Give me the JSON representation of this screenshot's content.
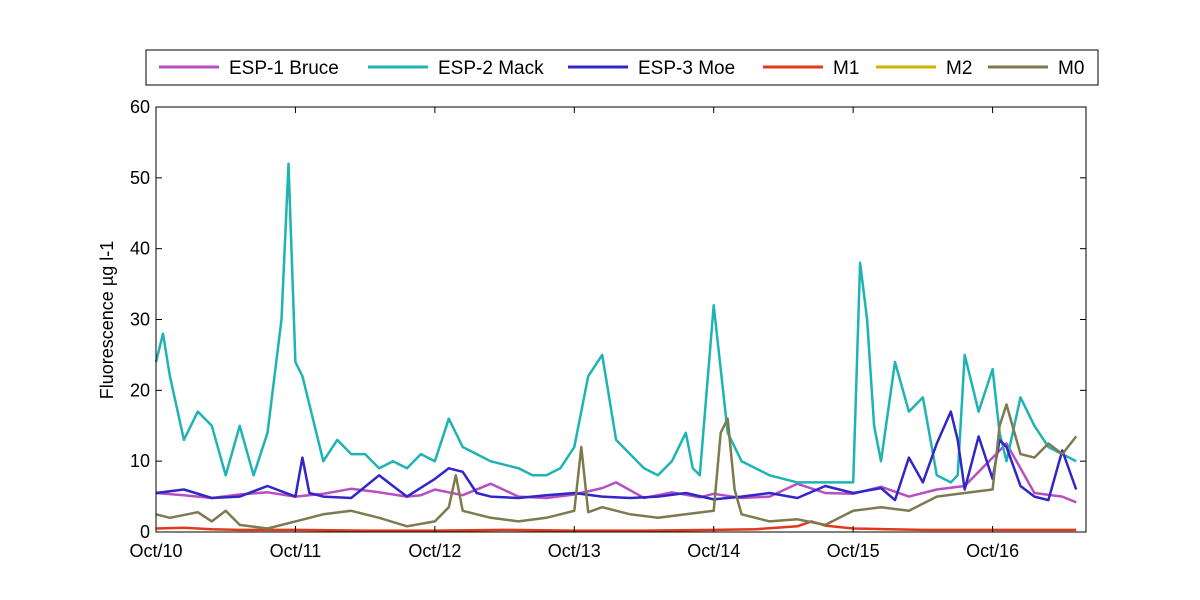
{
  "chart_data": {
    "type": "line",
    "title": "",
    "xlabel": "",
    "ylabel": "Fluorescence µg l-1",
    "x_ticks": [
      "Oct/10",
      "Oct/11",
      "Oct/12",
      "Oct/13",
      "Oct/14",
      "Oct/15",
      "Oct/16"
    ],
    "xlim": [
      0,
      6.67
    ],
    "ylim": [
      0,
      60
    ],
    "y_ticks": [
      0,
      10,
      20,
      30,
      40,
      50,
      60
    ],
    "grid": false,
    "legend_position": "top, horizontal, outside plot",
    "x_units": "days since Oct/10",
    "series": [
      {
        "name": "ESP-1 Bruce",
        "color": "#B84FC0",
        "x": [
          0,
          0.2,
          0.4,
          0.6,
          0.8,
          1.0,
          1.2,
          1.4,
          1.6,
          1.8,
          1.9,
          2.0,
          2.2,
          2.4,
          2.6,
          2.8,
          3.0,
          3.2,
          3.3,
          3.5,
          3.7,
          3.9,
          4.0,
          4.2,
          4.4,
          4.6,
          4.8,
          5.0,
          5.2,
          5.4,
          5.6,
          5.8,
          5.95,
          6.1,
          6.3,
          6.5,
          6.6
        ],
        "y": [
          5.5,
          5.2,
          4.8,
          5.3,
          5.6,
          5.0,
          5.4,
          6.1,
          5.6,
          5.0,
          5.2,
          6.0,
          5.2,
          6.8,
          5.0,
          4.8,
          5.3,
          6.2,
          7.0,
          4.8,
          5.6,
          4.9,
          5.4,
          4.8,
          5.0,
          6.8,
          5.5,
          5.4,
          6.4,
          5.0,
          6.0,
          6.5,
          9.5,
          12.5,
          5.5,
          5.0,
          4.2
        ]
      },
      {
        "name": "ESP-2 Mack",
        "color": "#1FB3B3",
        "x": [
          0,
          0.05,
          0.1,
          0.2,
          0.3,
          0.4,
          0.5,
          0.6,
          0.7,
          0.8,
          0.9,
          0.95,
          1.0,
          1.05,
          1.1,
          1.2,
          1.3,
          1.4,
          1.5,
          1.6,
          1.7,
          1.8,
          1.9,
          2.0,
          2.1,
          2.2,
          2.4,
          2.6,
          2.7,
          2.8,
          2.9,
          3.0,
          3.1,
          3.2,
          3.3,
          3.4,
          3.5,
          3.6,
          3.7,
          3.8,
          3.85,
          3.9,
          4.0,
          4.1,
          4.2,
          4.4,
          4.6,
          4.7,
          4.8,
          4.9,
          5.0,
          5.05,
          5.1,
          5.15,
          5.2,
          5.3,
          5.4,
          5.5,
          5.6,
          5.7,
          5.75,
          5.8,
          5.9,
          6.0,
          6.05,
          6.1,
          6.2,
          6.3,
          6.4,
          6.5,
          6.6
        ],
        "y": [
          24,
          28,
          22,
          13,
          17,
          15,
          8,
          15,
          8,
          14,
          30,
          52,
          24,
          22,
          18,
          10,
          13,
          11,
          11,
          9,
          10,
          9,
          11,
          10,
          16,
          12,
          10,
          9,
          8,
          8,
          9,
          12,
          22,
          25,
          13,
          11,
          9,
          8,
          10,
          14,
          9,
          8,
          32,
          14,
          10,
          8,
          7,
          7,
          7,
          7,
          7,
          38,
          30,
          15,
          10,
          24,
          17,
          19,
          8,
          7,
          8,
          25,
          17,
          23,
          14,
          10,
          19,
          15,
          12,
          11,
          10
        ]
      },
      {
        "name": "ESP-3 Moe",
        "color": "#3126C8",
        "x": [
          0,
          0.2,
          0.4,
          0.6,
          0.8,
          1.0,
          1.05,
          1.1,
          1.2,
          1.4,
          1.6,
          1.7,
          1.8,
          2.0,
          2.1,
          2.2,
          2.3,
          2.4,
          2.6,
          2.8,
          3.0,
          3.2,
          3.4,
          3.6,
          3.8,
          4.0,
          4.2,
          4.4,
          4.6,
          4.8,
          5.0,
          5.2,
          5.3,
          5.4,
          5.5,
          5.6,
          5.7,
          5.75,
          5.8,
          5.9,
          6.0,
          6.05,
          6.1,
          6.2,
          6.3,
          6.4,
          6.5,
          6.6
        ],
        "y": [
          5.5,
          6.0,
          4.8,
          5.0,
          6.5,
          5.0,
          10.5,
          5.5,
          5.0,
          4.8,
          8.0,
          6.5,
          5.0,
          7.5,
          9.0,
          8.5,
          5.5,
          5.0,
          4.8,
          5.2,
          5.5,
          5.0,
          4.8,
          5.0,
          5.5,
          4.6,
          5.0,
          5.5,
          4.8,
          6.5,
          5.5,
          6.2,
          4.5,
          10.5,
          7.0,
          12.5,
          17.0,
          13.0,
          6.0,
          13.5,
          7.5,
          13.0,
          12.0,
          6.5,
          5.0,
          4.5,
          11.5,
          6.0
        ]
      },
      {
        "name": "M1",
        "color": "#E03A1B",
        "x": [
          0,
          0.2,
          0.4,
          0.6,
          1.0,
          1.5,
          2.0,
          2.5,
          3.0,
          3.5,
          4.0,
          4.3,
          4.6,
          4.7,
          4.8,
          5.0,
          5.5,
          6.0,
          6.6
        ],
        "y": [
          0.5,
          0.6,
          0.4,
          0.3,
          0.3,
          0.2,
          0.2,
          0.3,
          0.2,
          0.2,
          0.3,
          0.4,
          0.8,
          1.5,
          0.9,
          0.5,
          0.3,
          0.3,
          0.3
        ]
      },
      {
        "name": "M2",
        "color": "#D1B300",
        "x": [],
        "y": []
      },
      {
        "name": "M0",
        "color": "#7C7A4E",
        "x": [
          0,
          0.1,
          0.3,
          0.4,
          0.5,
          0.6,
          0.8,
          1.0,
          1.2,
          1.4,
          1.6,
          1.8,
          2.0,
          2.1,
          2.15,
          2.2,
          2.4,
          2.6,
          2.8,
          3.0,
          3.05,
          3.1,
          3.2,
          3.4,
          3.6,
          3.8,
          4.0,
          4.05,
          4.1,
          4.15,
          4.2,
          4.4,
          4.6,
          4.8,
          5.0,
          5.2,
          5.4,
          5.6,
          5.8,
          6.0,
          6.05,
          6.1,
          6.2,
          6.3,
          6.4,
          6.5,
          6.6
        ],
        "y": [
          2.5,
          2.0,
          2.8,
          1.5,
          3.0,
          1.0,
          0.5,
          1.5,
          2.5,
          3.0,
          2.0,
          0.8,
          1.5,
          3.5,
          8.0,
          3.0,
          2.0,
          1.5,
          2.0,
          3.0,
          12.0,
          2.8,
          3.5,
          2.5,
          2.0,
          2.5,
          3.0,
          14.0,
          16.0,
          6.0,
          2.5,
          1.5,
          1.8,
          1.0,
          3.0,
          3.5,
          3.0,
          5.0,
          5.5,
          6.0,
          15.0,
          18.0,
          11.0,
          10.5,
          12.5,
          11.0,
          13.5
        ]
      }
    ]
  }
}
